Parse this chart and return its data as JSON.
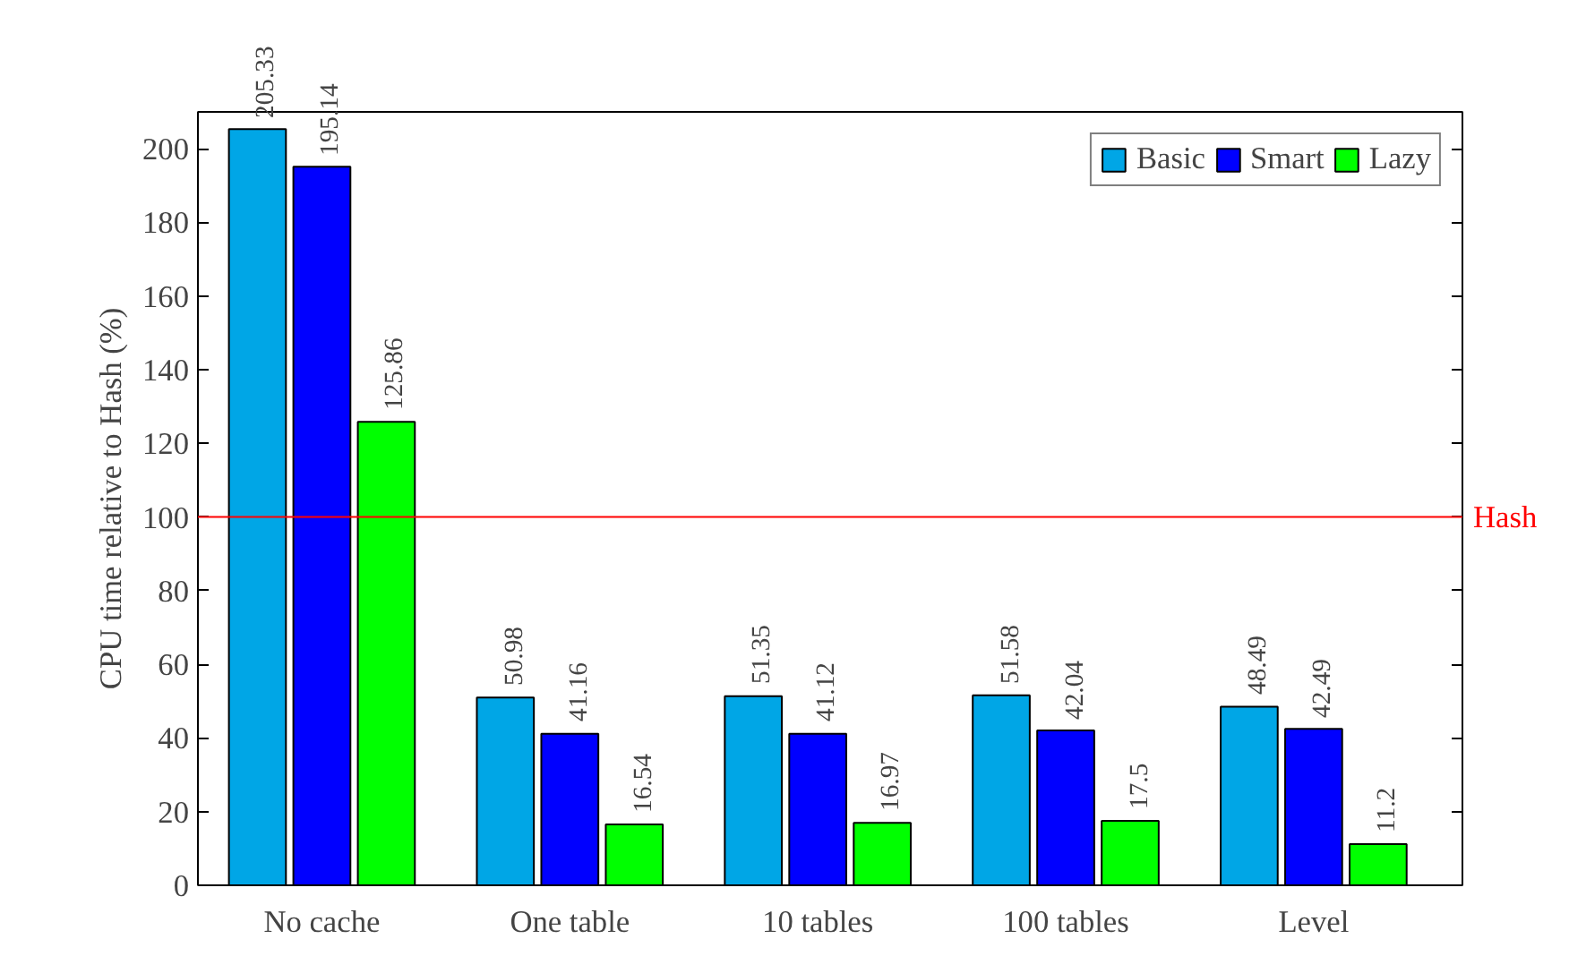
{
  "chart_data": {
    "type": "bar",
    "ylabel": "CPU time relative to Hash (%)",
    "categories": [
      "No cache",
      "One table",
      "10 tables",
      "100 tables",
      "Level"
    ],
    "series": [
      {
        "name": "Basic",
        "color": "#00a6e6",
        "values": [
          205.33,
          50.98,
          51.35,
          51.58,
          48.49
        ]
      },
      {
        "name": "Smart",
        "color": "#0000ff",
        "values": [
          195.14,
          41.16,
          41.12,
          42.04,
          42.49
        ]
      },
      {
        "name": "Lazy",
        "color": "#00ff00",
        "values": [
          125.86,
          16.54,
          16.97,
          17.5,
          11.2
        ]
      }
    ],
    "ylim": [
      0,
      210
    ],
    "yticks": [
      0,
      20,
      40,
      60,
      80,
      100,
      120,
      140,
      160,
      180,
      200
    ],
    "ref_lines": [
      {
        "axis": "y",
        "value": 100,
        "label": "Hash",
        "color": "#ff0000"
      }
    ],
    "data_labels": true,
    "legend": "top right",
    "grid": false
  }
}
